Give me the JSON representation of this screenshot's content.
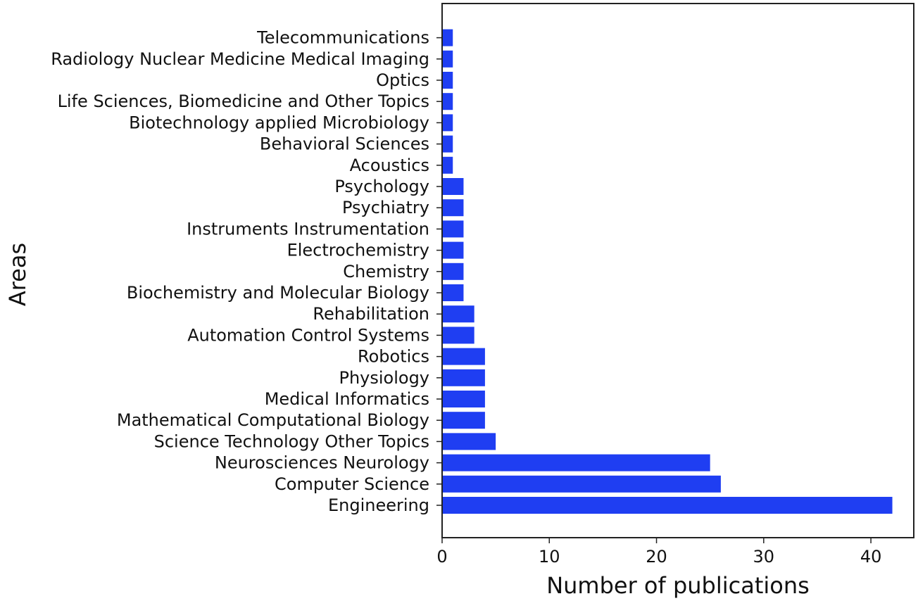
{
  "chart_data": {
    "type": "bar",
    "orientation": "horizontal",
    "title": "",
    "xlabel": "Number of publications",
    "ylabel": "Areas",
    "xlim": [
      0,
      44
    ],
    "xticks": [
      0,
      10,
      20,
      30,
      40
    ],
    "grid": false,
    "bar_color": "#1f3ef2",
    "categories": [
      "Engineering",
      "Computer Science",
      "Neurosciences Neurology",
      "Science Technology Other Topics",
      "Mathematical Computational Biology",
      "Medical Informatics",
      "Physiology",
      "Robotics",
      "Automation Control Systems",
      "Rehabilitation",
      "Biochemistry and Molecular Biology",
      "Chemistry",
      "Electrochemistry",
      "Instruments Instrumentation",
      "Psychiatry",
      "Psychology",
      "Acoustics",
      "Behavioral Sciences",
      "Biotechnology applied Microbiology",
      "Life Sciences, Biomedicine and Other Topics",
      "Optics",
      "Radiology Nuclear Medicine Medical Imaging",
      "Telecommunications"
    ],
    "values": [
      42,
      26,
      25,
      5,
      4,
      4,
      4,
      4,
      3,
      3,
      2,
      2,
      2,
      2,
      2,
      2,
      1,
      1,
      1,
      1,
      1,
      1,
      1
    ]
  }
}
